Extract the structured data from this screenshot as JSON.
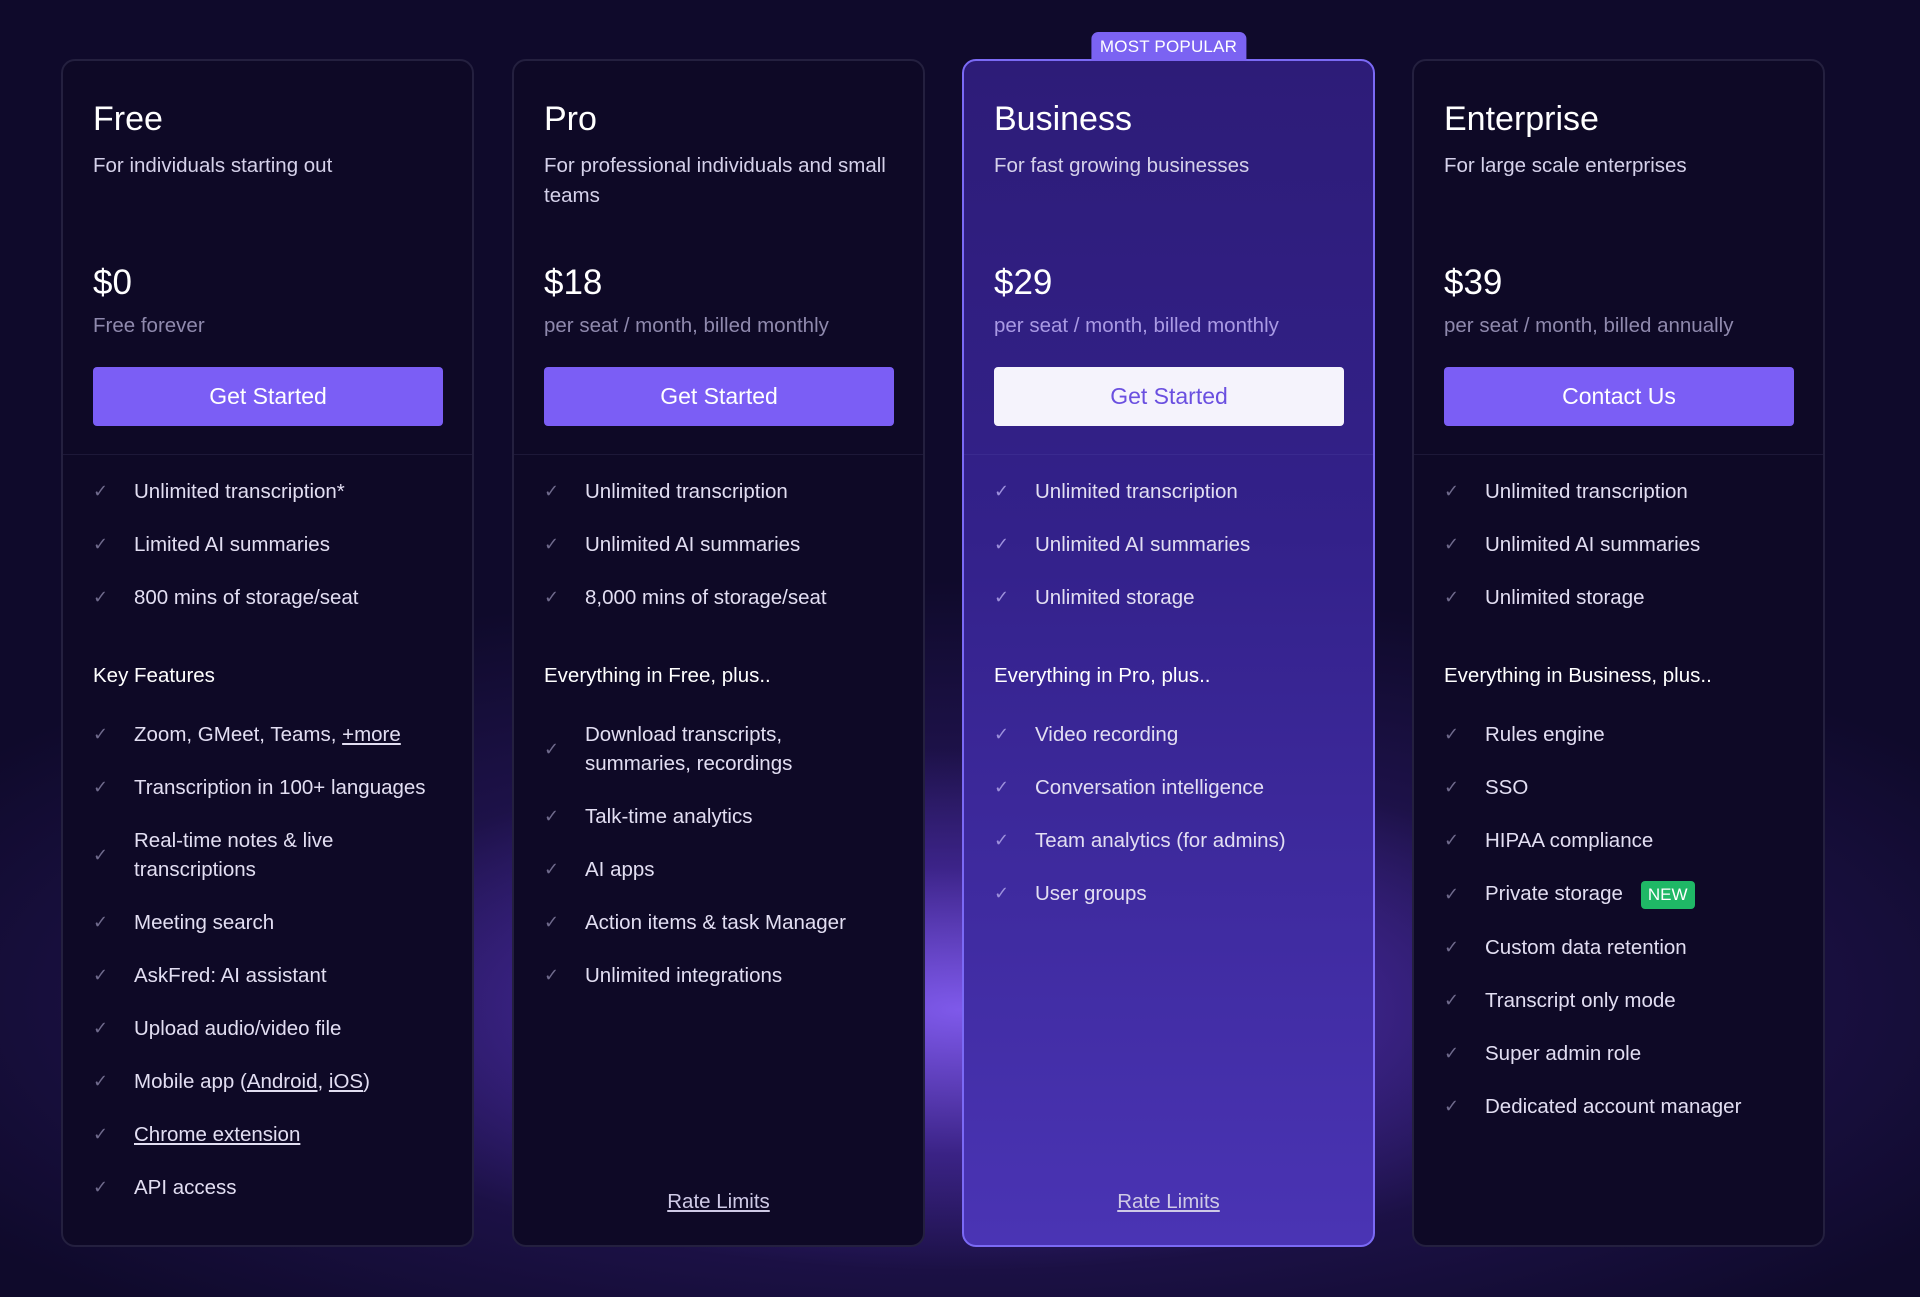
{
  "plans": [
    {
      "name": "Free",
      "description": "For individuals starting out",
      "price": "$0",
      "price_note": "Free forever",
      "cta": "Get Started",
      "core": [
        [
          {
            "t": "Unlimited transcription*"
          }
        ],
        [
          {
            "t": "Limited AI summaries"
          }
        ],
        [
          {
            "t": "800 mins of storage/seat"
          }
        ]
      ],
      "section": "Key Features",
      "features": [
        [
          {
            "t": "Zoom, GMeet, Teams, "
          },
          {
            "t": "+more",
            "link": true
          }
        ],
        [
          {
            "t": "Transcription in 100+ languages"
          }
        ],
        [
          {
            "t": "Real-time notes & live transcriptions"
          }
        ],
        [
          {
            "t": "Meeting search"
          }
        ],
        [
          {
            "t": "AskFred: AI assistant"
          }
        ],
        [
          {
            "t": "Upload audio/video file"
          }
        ],
        [
          {
            "t": "Mobile app ("
          },
          {
            "t": "Android",
            "link": true
          },
          {
            "t": ", "
          },
          {
            "t": "iOS",
            "link": true
          },
          {
            "t": ")"
          }
        ],
        [
          {
            "t": "Chrome extension",
            "link": true
          }
        ],
        [
          {
            "t": "API access"
          }
        ]
      ]
    },
    {
      "name": "Pro",
      "description": "For professional individuals and small teams",
      "price": "$18",
      "price_note": "per seat / month, billed monthly",
      "cta": "Get Started",
      "core": [
        [
          {
            "t": "Unlimited transcription"
          }
        ],
        [
          {
            "t": "Unlimited AI summaries"
          }
        ],
        [
          {
            "t": "8,000 mins of storage/seat"
          }
        ]
      ],
      "section": "Everything in Free, plus..",
      "features": [
        [
          {
            "t": "Download transcripts, summaries, recordings"
          }
        ],
        [
          {
            "t": "Talk-time analytics"
          }
        ],
        [
          {
            "t": "AI apps"
          }
        ],
        [
          {
            "t": "Action items & task Manager"
          }
        ],
        [
          {
            "t": "Unlimited integrations"
          }
        ]
      ],
      "footer_link": "Rate Limits"
    },
    {
      "name": "Business",
      "description": "For fast growing businesses",
      "price": "$29",
      "price_note": "per seat / month, billed monthly",
      "cta": "Get Started",
      "badge": "MOST POPULAR",
      "core": [
        [
          {
            "t": "Unlimited transcription"
          }
        ],
        [
          {
            "t": "Unlimited AI summaries"
          }
        ],
        [
          {
            "t": "Unlimited storage"
          }
        ]
      ],
      "section": "Everything in Pro, plus..",
      "features": [
        [
          {
            "t": "Video recording"
          }
        ],
        [
          {
            "t": "Conversation intelligence"
          }
        ],
        [
          {
            "t": "Team analytics (for admins)"
          }
        ],
        [
          {
            "t": "User groups"
          }
        ]
      ],
      "footer_link": "Rate Limits"
    },
    {
      "name": "Enterprise",
      "description": "For large scale enterprises",
      "price": "$39",
      "price_note": "per seat / month, billed annually",
      "cta": "Contact Us",
      "core": [
        [
          {
            "t": "Unlimited transcription"
          }
        ],
        [
          {
            "t": "Unlimited AI summaries"
          }
        ],
        [
          {
            "t": "Unlimited storage"
          }
        ]
      ],
      "section": "Everything in Business, plus..",
      "features": [
        [
          {
            "t": "Rules engine"
          }
        ],
        [
          {
            "t": "SSO"
          }
        ],
        [
          {
            "t": "HIPAA compliance"
          }
        ],
        [
          {
            "t": "Private storage"
          },
          {
            "t": "NEW",
            "badge": true
          }
        ],
        [
          {
            "t": "Custom data retention"
          }
        ],
        [
          {
            "t": "Transcript only mode"
          }
        ],
        [
          {
            "t": "Super admin role"
          }
        ],
        [
          {
            "t": "Dedicated account manager"
          }
        ]
      ]
    }
  ],
  "colors": {
    "accent": "#7b5ef5",
    "background": "#0f0a2b",
    "highlight_card": "#33218a",
    "new_badge": "#1fb866"
  },
  "icons": {
    "feature_check": "check-icon"
  }
}
